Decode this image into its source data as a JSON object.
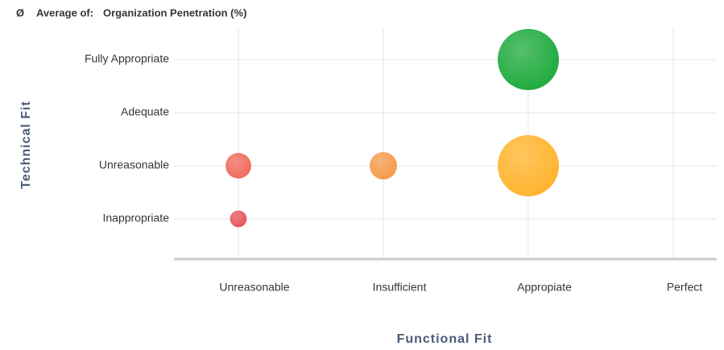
{
  "chart_data": {
    "type": "bubble",
    "size_symbol": "Ø",
    "size_label_prefix": "Average of:",
    "size_label": "Organization Penetration (%)",
    "x_label": "Functional Fit",
    "y_label": "Technical Fit",
    "x_categories": [
      "Unreasonable",
      "Insufficient",
      "Appropiate",
      "Perfect"
    ],
    "y_categories": [
      "Inappropriate",
      "Unreasonable",
      "Adequate",
      "Fully Appropriate"
    ],
    "points": [
      {
        "x": "Appropiate",
        "y": "Fully Appropriate",
        "size": 80,
        "color": "#1eaa3c"
      },
      {
        "x": "Appropiate",
        "y": "Unreasonable",
        "size": 80,
        "color": "#ffb32b"
      },
      {
        "x": "Insufficient",
        "y": "Unreasonable",
        "size": 16,
        "color": "#f39a4a"
      },
      {
        "x": "Unreasonable",
        "y": "Unreasonable",
        "size": 14,
        "color": "#ef6a5a"
      },
      {
        "x": "Unreasonable",
        "y": "Inappropriate",
        "size": 6,
        "color": "#e8545a"
      }
    ],
    "grid": true
  }
}
